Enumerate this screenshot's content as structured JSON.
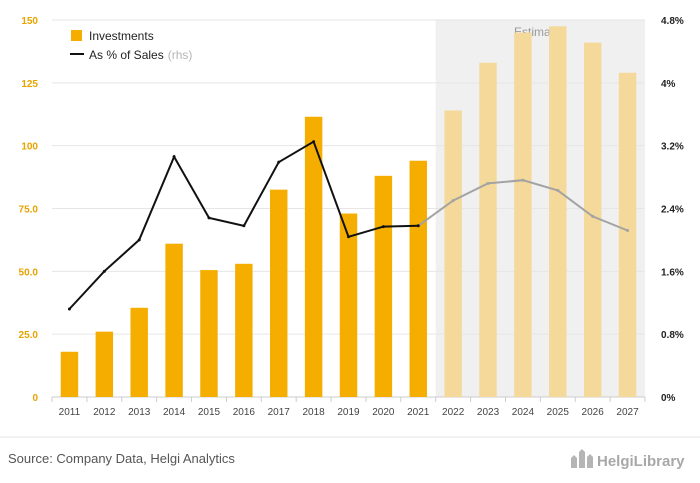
{
  "chart_data": {
    "type": "bar",
    "categories": [
      "2011",
      "2012",
      "2013",
      "2014",
      "2015",
      "2016",
      "2017",
      "2018",
      "2019",
      "2020",
      "2021",
      "2022",
      "2023",
      "2024",
      "2025",
      "2026",
      "2027"
    ],
    "series": [
      {
        "name": "Investments",
        "axis": "left",
        "type": "bar",
        "color": "#f5ae00",
        "estimate_color": "#f5d99a",
        "values": [
          18,
          26,
          35.5,
          61,
          50.5,
          53,
          82.5,
          111.5,
          73,
          88,
          94,
          114,
          133,
          145,
          147.5,
          141,
          129
        ]
      },
      {
        "name": "As % of Sales",
        "axis": "right",
        "type": "line",
        "color": "#111111",
        "estimate_color": "#a3a3a3",
        "values": [
          1.12,
          1.6,
          2.0,
          3.06,
          2.28,
          2.18,
          2.99,
          3.25,
          2.04,
          2.17,
          2.18,
          2.5,
          2.72,
          2.76,
          2.63,
          2.3,
          2.12
        ]
      }
    ],
    "estimate_start_index": 11,
    "estimates_label": "Estimates",
    "legend": {
      "investments_label": "Investments",
      "pct_label": "As % of Sales",
      "pct_suffix": "(rhs)"
    },
    "y_left": {
      "ylim": [
        0,
        150
      ],
      "ticks": [
        0,
        25,
        50,
        75,
        100,
        125,
        150
      ],
      "tick_labels": [
        "0",
        "25.0",
        "50.0",
        "75.0",
        "100",
        "125",
        "150"
      ],
      "color": "#e7a400"
    },
    "y_right": {
      "ylim": [
        0,
        4.8
      ],
      "ticks": [
        0,
        0.8,
        1.6,
        2.4,
        3.2,
        4.0,
        4.8
      ],
      "tick_labels": [
        "0%",
        "0.8%",
        "1.6%",
        "2.4%",
        "3.2%",
        "4%",
        "4.8%"
      ]
    },
    "grid": true
  },
  "source": "Source: Company Data, Helgi Analytics",
  "brand": "HelgiLibrary"
}
